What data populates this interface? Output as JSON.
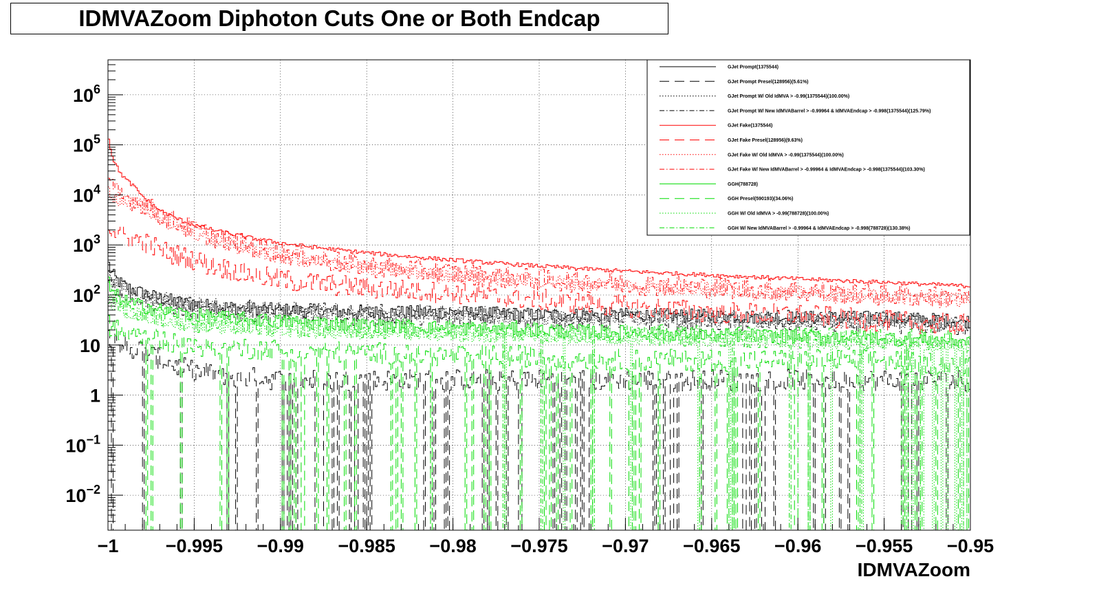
{
  "chart_data": {
    "type": "line",
    "title": "IDMVAZoom Diphoton Cuts One or Both Endcap",
    "xlabel": "IDMVAZoom",
    "ylabel": "",
    "xlim": [
      -1,
      -0.95
    ],
    "ylim": [
      0.002,
      5000000
    ],
    "yscale": "log",
    "grid": true,
    "legend_position": "top-right",
    "x_ticks": [
      "−1",
      "−0.995",
      "−0.99",
      "−0.985",
      "−0.98",
      "−0.975",
      "−0.97",
      "−0.965",
      "−0.96",
      "−0.955",
      "−0.95"
    ],
    "y_ticks": [
      {
        "value": 1000000,
        "base": "10",
        "exp": "6"
      },
      {
        "value": 100000,
        "base": "10",
        "exp": "5"
      },
      {
        "value": 10000,
        "base": "10",
        "exp": "4"
      },
      {
        "value": 1000,
        "base": "10",
        "exp": "3"
      },
      {
        "value": 100,
        "base": "10",
        "exp": "2"
      },
      {
        "value": 10,
        "base": "10",
        "exp": ""
      },
      {
        "value": 1,
        "base": "1",
        "exp": ""
      },
      {
        "value": 0.1,
        "base": "10",
        "exp": "−1"
      },
      {
        "value": 0.01,
        "base": "10",
        "exp": "−2"
      }
    ],
    "series": [
      {
        "name": "GJet Prompt(1375544)",
        "color": "#000000",
        "style": "solid",
        "x": [
          -1.0,
          -0.998,
          -0.995,
          -0.99,
          -0.985,
          -0.98,
          -0.975,
          -0.97,
          -0.965,
          -0.96,
          -0.955,
          -0.95
        ],
        "values": [
          500,
          110,
          65,
          50,
          45,
          45,
          40,
          40,
          38,
          35,
          35,
          30
        ]
      },
      {
        "name": "GJet Prompt Presel(128956)(5.61%)",
        "color": "#000000",
        "style": "dashed",
        "x": [
          -1.0,
          -0.998,
          -0.995,
          -0.99,
          -0.985,
          -0.98,
          -0.975,
          -0.97,
          -0.965,
          -0.96,
          -0.955,
          -0.95
        ],
        "values": [
          20,
          8,
          3,
          2,
          2,
          2,
          2,
          2,
          2,
          2,
          2,
          2
        ]
      },
      {
        "name": "GJet Prompt W/ Old IdMVA > -0.99(1375544)(100.00%)",
        "color": "#000000",
        "style": "dotted",
        "x": [
          -1.0,
          -0.998,
          -0.995,
          -0.99,
          -0.985,
          -0.98,
          -0.975,
          -0.97,
          -0.965,
          -0.96,
          -0.955,
          -0.95
        ],
        "values": [
          400,
          100,
          60,
          45,
          40,
          40,
          35,
          35,
          32,
          30,
          30,
          25
        ]
      },
      {
        "name": "GJet Prompt W/ New IdMVABarrel > -0.99964 & IdMVAEndcap > -0.998(1375544)(125.79%)",
        "color": "#000000",
        "style": "dashdot",
        "x": [
          -1.0,
          -0.998,
          -0.995,
          -0.99,
          -0.985,
          -0.98,
          -0.975,
          -0.97,
          -0.965,
          -0.96,
          -0.955,
          -0.95
        ],
        "values": [
          350,
          90,
          55,
          45,
          40,
          38,
          35,
          33,
          30,
          30,
          28,
          25
        ]
      },
      {
        "name": "GJet Fake(1375544)",
        "color": "#ff0000",
        "style": "solid",
        "x": [
          -1.0,
          -0.9985,
          -0.997,
          -0.995,
          -0.993,
          -0.99,
          -0.985,
          -0.98,
          -0.975,
          -0.97,
          -0.965,
          -0.96,
          -0.955,
          -0.95
        ],
        "values": [
          200000,
          15000,
          5000,
          2500,
          1700,
          1100,
          700,
          500,
          380,
          300,
          250,
          210,
          180,
          150
        ]
      },
      {
        "name": "GJet Fake Presel(128956)(9.63%)",
        "color": "#ff0000",
        "style": "dashed",
        "x": [
          -1.0,
          -0.998,
          -0.995,
          -0.99,
          -0.985,
          -0.98,
          -0.975,
          -0.97,
          -0.965,
          -0.96,
          -0.955,
          -0.95
        ],
        "values": [
          3000,
          1200,
          500,
          200,
          140,
          110,
          80,
          60,
          45,
          40,
          30,
          25
        ]
      },
      {
        "name": "GJet Fake W/ Old IdMVA > -0.99(1375544)(100.00%)",
        "color": "#ff0000",
        "style": "dotted",
        "x": [
          -1.0,
          -0.998,
          -0.995,
          -0.99,
          -0.985,
          -0.98,
          -0.975,
          -0.97,
          -0.965,
          -0.96,
          -0.955,
          -0.95
        ],
        "values": [
          15000,
          6000,
          1800,
          600,
          350,
          250,
          190,
          160,
          130,
          110,
          95,
          80
        ]
      },
      {
        "name": "GJet Fake W/ New IdMVABarrel > -0.99964 & IdMVAEndcap > -0.998(1375544)(103.30%)",
        "color": "#ff0000",
        "style": "dashdot",
        "x": [
          -1.0,
          -0.998,
          -0.995,
          -0.99,
          -0.985,
          -0.98,
          -0.975,
          -0.97,
          -0.965,
          -0.96,
          -0.955,
          -0.95
        ],
        "values": [
          20000,
          7000,
          2000,
          700,
          380,
          270,
          200,
          170,
          140,
          120,
          100,
          85
        ]
      },
      {
        "name": "GGH(788728)",
        "color": "#00dd00",
        "style": "solid",
        "x": [
          -1.0,
          -0.998,
          -0.995,
          -0.99,
          -0.985,
          -0.98,
          -0.975,
          -0.97,
          -0.965,
          -0.96,
          -0.955,
          -0.95
        ],
        "values": [
          200,
          60,
          40,
          30,
          25,
          22,
          20,
          18,
          16,
          15,
          14,
          12
        ]
      },
      {
        "name": "GGH Presel(590193)(34.06%)",
        "color": "#00dd00",
        "style": "dashed",
        "x": [
          -1.0,
          -0.998,
          -0.995,
          -0.99,
          -0.985,
          -0.98,
          -0.975,
          -0.97,
          -0.965,
          -0.96,
          -0.955,
          -0.95
        ],
        "values": [
          30,
          15,
          10,
          8,
          7,
          6,
          6,
          5,
          5,
          5,
          5,
          4
        ]
      },
      {
        "name": "GGH W/ Old IdMVA > -0.99(788728)(100.00%)",
        "color": "#00dd00",
        "style": "dotted",
        "x": [
          -1.0,
          -0.998,
          -0.995,
          -0.99,
          -0.985,
          -0.98,
          -0.975,
          -0.97,
          -0.965,
          -0.96,
          -0.955,
          -0.95
        ],
        "values": [
          100,
          40,
          25,
          20,
          18,
          16,
          15,
          14,
          13,
          12,
          11,
          10
        ]
      },
      {
        "name": "GGH W/ New IdMVABarrel > -0.99964 & IdMVAEndcap > -0.998(788728)(130.38%)",
        "color": "#00dd00",
        "style": "dashdot",
        "x": [
          -1.0,
          -0.998,
          -0.995,
          -0.99,
          -0.985,
          -0.98,
          -0.975,
          -0.97,
          -0.965,
          -0.96,
          -0.955,
          -0.95
        ],
        "values": [
          150,
          50,
          30,
          25,
          22,
          20,
          18,
          16,
          15,
          14,
          13,
          12
        ]
      }
    ]
  }
}
